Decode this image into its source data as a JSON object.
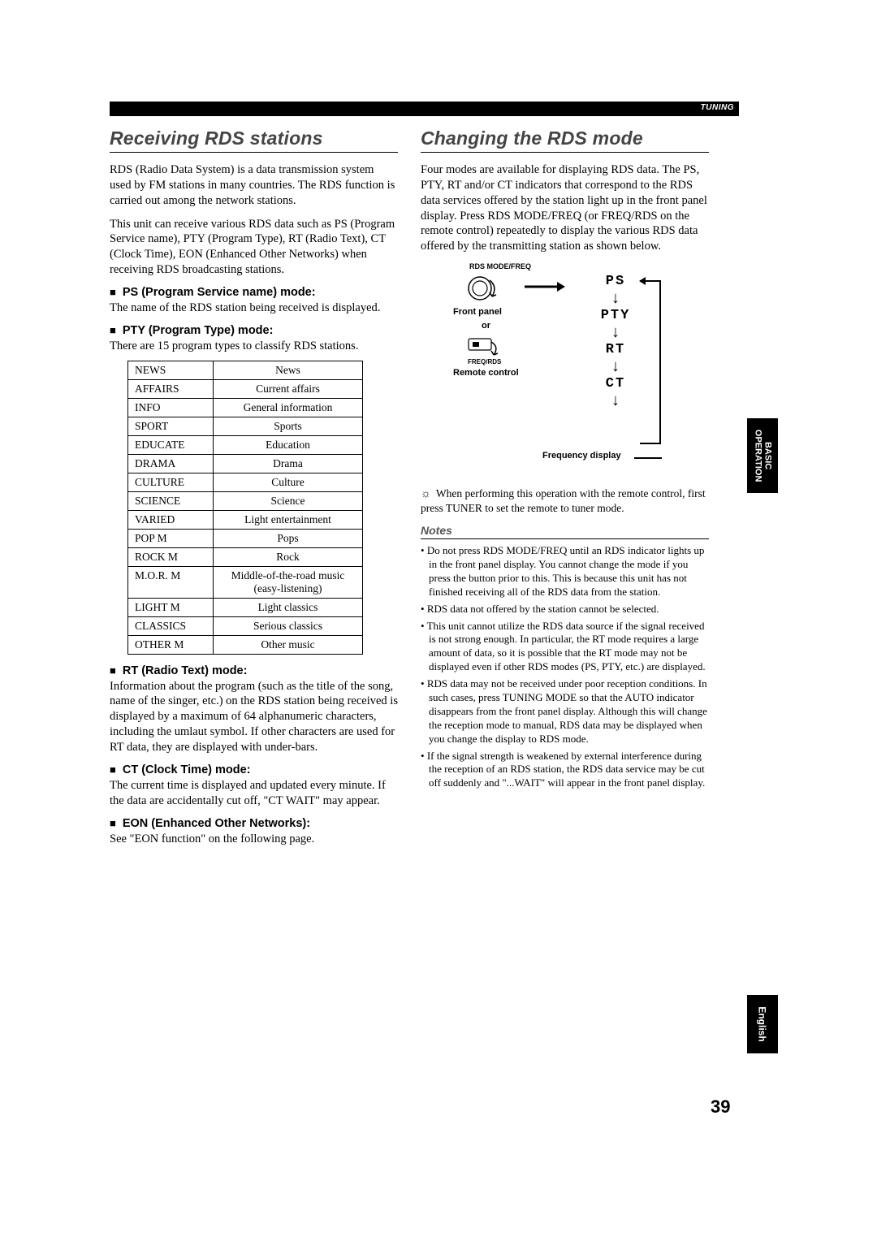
{
  "header": {
    "tab": "TUNING"
  },
  "left": {
    "title": "Receiving RDS stations",
    "para1": "RDS (Radio Data System) is a data transmission system used by FM stations in many countries. The RDS function is carried out among the network stations.",
    "para2": "This unit can receive various RDS data such as PS (Program Service name), PTY (Program Type), RT (Radio Text), CT (Clock Time), EON (Enhanced Other Networks) when receiving RDS broadcasting stations.",
    "ps": {
      "h": "PS (Program Service name) mode:",
      "t": "The name of the RDS station being received is displayed."
    },
    "pty": {
      "h": "PTY (Program Type) mode:",
      "t": "There are 15 program types to classify RDS stations."
    },
    "pty_rows": [
      [
        "NEWS",
        "News"
      ],
      [
        "AFFAIRS",
        "Current affairs"
      ],
      [
        "INFO",
        "General information"
      ],
      [
        "SPORT",
        "Sports"
      ],
      [
        "EDUCATE",
        "Education"
      ],
      [
        "DRAMA",
        "Drama"
      ],
      [
        "CULTURE",
        "Culture"
      ],
      [
        "SCIENCE",
        "Science"
      ],
      [
        "VARIED",
        "Light entertainment"
      ],
      [
        "POP M",
        "Pops"
      ],
      [
        "ROCK M",
        "Rock"
      ],
      [
        "M.O.R. M",
        "Middle-of-the-road music (easy-listening)"
      ],
      [
        "LIGHT M",
        "Light classics"
      ],
      [
        "CLASSICS",
        "Serious classics"
      ],
      [
        "OTHER M",
        "Other music"
      ]
    ],
    "rt": {
      "h": "RT (Radio Text) mode:",
      "t": "Information about the program (such as the title of the song, name of the singer, etc.) on the RDS station being received is displayed by a maximum of 64 alphanumeric characters, including the umlaut symbol. If other characters are used for RT data, they are displayed with under-bars."
    },
    "ct": {
      "h": "CT (Clock Time) mode:",
      "t": "The current time is displayed and updated every minute. If the data are accidentally cut off, \"CT WAIT\" may appear."
    },
    "eon": {
      "h": "EON (Enhanced Other Networks):",
      "t": "See \"EON function\" on the following page."
    }
  },
  "right": {
    "title": "Changing the RDS mode",
    "para": "Four modes are available for displaying RDS data. The PS, PTY, RT and/or CT indicators that correspond to the RDS data services offered by the station light up in the front panel display. Press RDS MODE/FREQ (or FREQ/RDS on the remote control) repeatedly to display the various RDS data offered by the transmitting station as shown below.",
    "diagram": {
      "rds_mode": "RDS MODE/FREQ",
      "front_panel": "Front panel",
      "or": "or",
      "freq_rds": "FREQ/RDS",
      "remote": "Remote control",
      "states": [
        "PS",
        "PTY",
        "RT",
        "CT"
      ],
      "freq_display": "Frequency display"
    },
    "tip": "When performing this operation with the remote control, first press TUNER to set the remote to tuner mode.",
    "notes_label": "Notes",
    "notes": [
      "Do not press RDS MODE/FREQ until an RDS indicator lights up in the front panel display. You cannot change the mode if you press the button prior to this. This is because this unit has not finished receiving all of the RDS data from the station.",
      "RDS data not offered by the station cannot be selected.",
      "This unit cannot utilize the RDS data source if the signal received is not strong enough. In particular, the RT mode requires a large amount of data, so it is possible that the RT mode may not be displayed even if other RDS modes (PS, PTY, etc.) are displayed.",
      "RDS data may not be received under poor reception conditions. In such cases, press TUNING MODE so that the AUTO indicator disappears from the front panel display. Although this will change the reception mode to manual, RDS data may be displayed when you change the display to RDS mode.",
      "If the signal strength is weakened by external interference during the reception of an RDS station, the RDS data service may be cut off suddenly and \"...WAIT\" will appear in the front panel display."
    ]
  },
  "side": {
    "basic": "BASIC",
    "operation": "OPERATION",
    "english": "English"
  },
  "page_number": "39"
}
